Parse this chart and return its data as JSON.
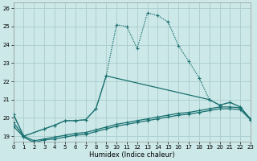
{
  "xlabel": "Humidex (Indice chaleur)",
  "background_color": "#cce8e8",
  "grid_color": "#aacccc",
  "line_color": "#1a7070",
  "xlim": [
    0,
    23
  ],
  "ylim": [
    18.7,
    26.3
  ],
  "yticks": [
    19,
    20,
    21,
    22,
    23,
    24,
    25,
    26
  ],
  "xticks": [
    0,
    1,
    2,
    3,
    4,
    5,
    6,
    7,
    8,
    9,
    10,
    11,
    12,
    13,
    14,
    15,
    16,
    17,
    18,
    19,
    20,
    21,
    22,
    23
  ],
  "lines": [
    {
      "x": [
        0,
        1,
        3,
        4,
        5,
        6,
        7,
        8,
        9,
        10,
        11,
        12,
        13,
        14,
        15,
        16,
        17,
        18,
        19,
        20,
        21,
        22,
        23
      ],
      "y": [
        20.2,
        19.0,
        19.4,
        19.6,
        19.85,
        19.85,
        19.9,
        20.5,
        22.3,
        25.1,
        25.0,
        23.8,
        25.75,
        25.6,
        25.25,
        23.95,
        23.1,
        22.2,
        21.0,
        20.7,
        20.85,
        20.6,
        19.9
      ],
      "style": "dotted"
    },
    {
      "x": [
        0,
        1,
        3,
        4,
        5,
        6,
        7,
        8,
        9,
        19,
        20,
        21,
        22,
        23
      ],
      "y": [
        20.2,
        19.0,
        19.4,
        19.6,
        19.85,
        19.85,
        19.9,
        20.5,
        22.3,
        21.0,
        20.7,
        20.85,
        20.6,
        19.9
      ],
      "style": "solid"
    },
    {
      "x": [
        0,
        1,
        2,
        3,
        4,
        5,
        6,
        7,
        8,
        9,
        10,
        11,
        12,
        13,
        14,
        15,
        16,
        17,
        18,
        19,
        20,
        21,
        22,
        23
      ],
      "y": [
        19.55,
        18.95,
        18.65,
        18.8,
        18.85,
        18.95,
        19.05,
        19.1,
        19.25,
        19.4,
        19.55,
        19.65,
        19.75,
        19.85,
        19.95,
        20.05,
        20.15,
        20.2,
        20.3,
        20.4,
        20.5,
        20.5,
        20.45,
        19.9
      ],
      "style": "solid"
    },
    {
      "x": [
        0,
        1,
        2,
        3,
        4,
        5,
        6,
        7,
        8,
        9,
        10,
        11,
        12,
        13,
        14,
        15,
        16,
        17,
        18,
        19,
        20,
        21,
        22,
        23
      ],
      "y": [
        19.75,
        19.0,
        18.75,
        18.85,
        18.95,
        19.05,
        19.15,
        19.2,
        19.35,
        19.5,
        19.65,
        19.75,
        19.85,
        19.95,
        20.05,
        20.15,
        20.25,
        20.3,
        20.4,
        20.5,
        20.6,
        20.6,
        20.55,
        19.95
      ],
      "style": "solid"
    }
  ]
}
